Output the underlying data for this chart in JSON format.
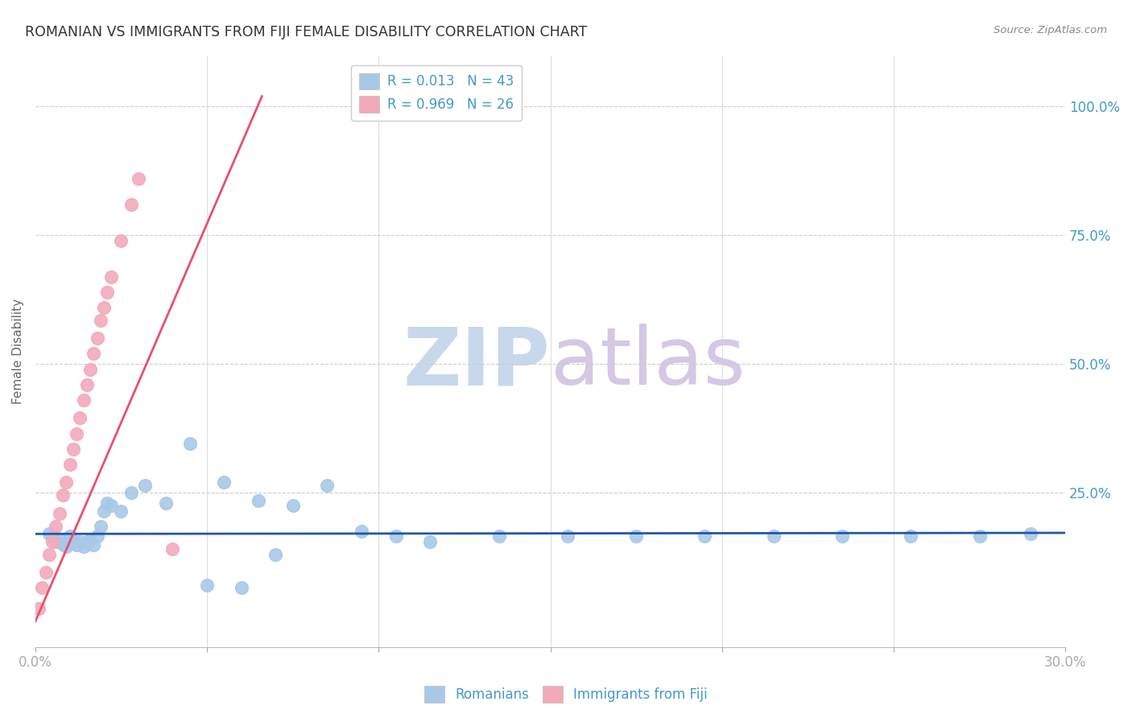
{
  "title": "ROMANIAN VS IMMIGRANTS FROM FIJI FEMALE DISABILITY CORRELATION CHART",
  "source": "Source: ZipAtlas.com",
  "ylabel": "Female Disability",
  "ytick_labels": [
    "100.0%",
    "75.0%",
    "50.0%",
    "25.0%"
  ],
  "ytick_values": [
    1.0,
    0.75,
    0.5,
    0.25
  ],
  "xlim": [
    0.0,
    0.3
  ],
  "ylim": [
    -0.05,
    1.1
  ],
  "legend_romanian": "R = 0.013   N = 43",
  "legend_fiji": "R = 0.969   N = 26",
  "legend_label_romanian": "Romanians",
  "legend_label_fiji": "Immigrants from Fiji",
  "color_romanian": "#A8C8E8",
  "color_fiji": "#F2AABB",
  "color_trendline_romanian": "#2255AA",
  "color_trendline_fiji": "#E85070",
  "title_color": "#333333",
  "axis_label_color": "#4499CC",
  "watermark_color": "#D8E4F0",
  "background_color": "#FFFFFF",
  "grid_color": "#CCCCCC",
  "romanian_x": [
    0.004,
    0.005,
    0.006,
    0.007,
    0.008,
    0.009,
    0.01,
    0.011,
    0.012,
    0.013,
    0.014,
    0.015,
    0.016,
    0.017,
    0.018,
    0.019,
    0.02,
    0.021,
    0.022,
    0.025,
    0.028,
    0.032,
    0.038,
    0.045,
    0.055,
    0.065,
    0.075,
    0.085,
    0.095,
    0.105,
    0.115,
    0.135,
    0.155,
    0.175,
    0.195,
    0.215,
    0.235,
    0.255,
    0.275,
    0.29,
    0.05,
    0.06,
    0.07
  ],
  "romanian_y": [
    0.17,
    0.165,
    0.155,
    0.16,
    0.15,
    0.145,
    0.165,
    0.155,
    0.148,
    0.155,
    0.145,
    0.155,
    0.16,
    0.148,
    0.165,
    0.185,
    0.215,
    0.23,
    0.225,
    0.215,
    0.25,
    0.265,
    0.23,
    0.345,
    0.27,
    0.235,
    0.225,
    0.265,
    0.175,
    0.165,
    0.155,
    0.165,
    0.165,
    0.165,
    0.165,
    0.165,
    0.165,
    0.165,
    0.165,
    0.17,
    0.07,
    0.065,
    0.13
  ],
  "fiji_x": [
    0.001,
    0.002,
    0.003,
    0.004,
    0.005,
    0.006,
    0.007,
    0.008,
    0.009,
    0.01,
    0.011,
    0.012,
    0.013,
    0.014,
    0.015,
    0.016,
    0.017,
    0.018,
    0.019,
    0.02,
    0.021,
    0.022,
    0.025,
    0.028,
    0.03,
    0.04
  ],
  "fiji_y": [
    0.025,
    0.065,
    0.095,
    0.13,
    0.155,
    0.185,
    0.21,
    0.245,
    0.27,
    0.305,
    0.335,
    0.365,
    0.395,
    0.43,
    0.46,
    0.49,
    0.52,
    0.55,
    0.585,
    0.61,
    0.64,
    0.67,
    0.74,
    0.81,
    0.86,
    0.14
  ],
  "fiji_trendline_x": [
    0.0,
    0.066
  ],
  "fiji_trendline_y": [
    0.0,
    1.02
  ],
  "romanian_trendline_x": [
    0.0,
    0.3
  ],
  "romanian_trendline_y": [
    0.17,
    0.172
  ]
}
